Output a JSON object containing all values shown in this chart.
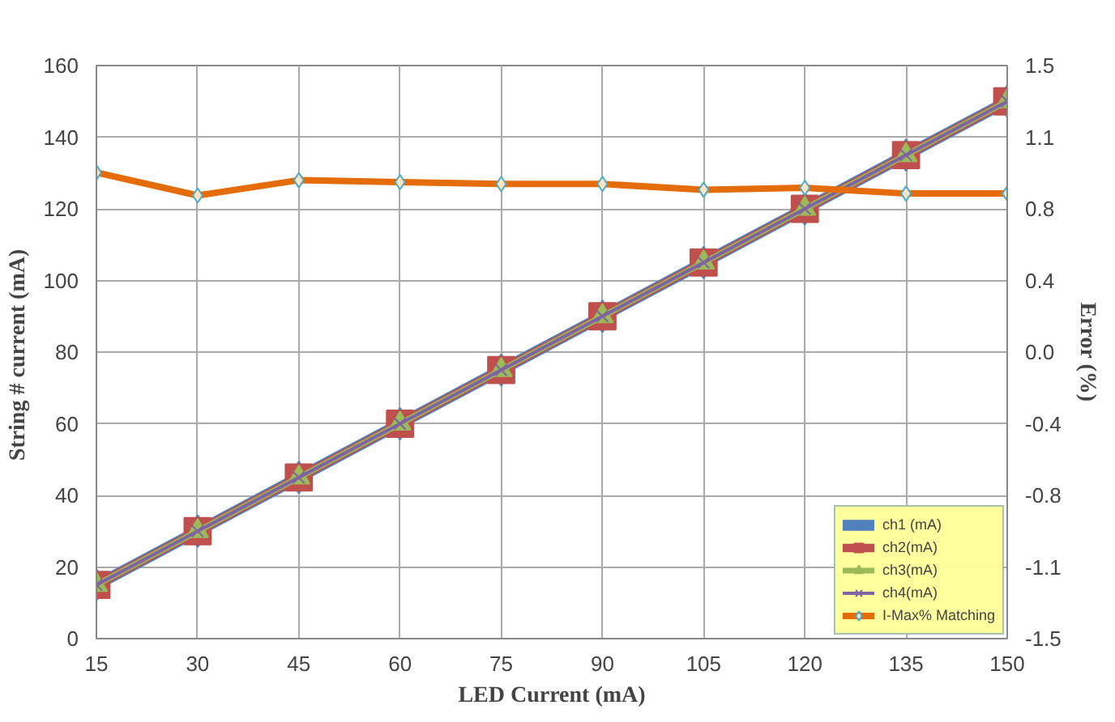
{
  "chart_data": {
    "type": "line",
    "xlabel": "LED Current (mA)",
    "ylabel": "String # current  (mA)",
    "y2label": "Error (%)",
    "x": [
      15,
      30,
      45,
      60,
      75,
      90,
      105,
      120,
      135,
      150
    ],
    "xlim": [
      15,
      150
    ],
    "xticks": [
      15,
      30,
      45,
      60,
      75,
      90,
      105,
      120,
      135,
      150
    ],
    "ylim": [
      0,
      160
    ],
    "yticks": [
      0,
      20,
      40,
      60,
      80,
      100,
      120,
      140,
      160
    ],
    "y2lim": [
      -1.5,
      1.5
    ],
    "y2ticks": [
      -1.5,
      {
        "value": -1.125,
        "label": "-1.1"
      },
      {
        "value": -0.75,
        "label": "-0.8"
      },
      {
        "value": -0.375,
        "label": "-0.4"
      },
      {
        "value": 0,
        "label": "0.0"
      },
      {
        "value": 0.375,
        "label": "0.4"
      },
      {
        "value": 0.75,
        "label": "0.8"
      },
      {
        "value": 1.125,
        "label": "1.1"
      },
      1.5
    ],
    "grid": true,
    "legend": "bottom right",
    "series": [
      {
        "name": "ch1 (mA)",
        "color": "#4f81bd",
        "marker": "diamond",
        "values": [
          15,
          30,
          45,
          60,
          75,
          90,
          105,
          120,
          135,
          150
        ]
      },
      {
        "name": "ch2(mA)",
        "color": "#c0504d",
        "marker": "square",
        "values": [
          15,
          30,
          45,
          60,
          75,
          90,
          105,
          120,
          135,
          150
        ]
      },
      {
        "name": "ch3(mA)",
        "color": "#9bbb59",
        "marker": "triangle",
        "values": [
          15,
          30,
          45,
          60,
          75,
          90,
          105,
          120,
          135,
          150
        ]
      },
      {
        "name": "ch4(mA)",
        "color": "#8064a2",
        "marker": "cross",
        "values": [
          15,
          30,
          45,
          60,
          75,
          90,
          105,
          120,
          135,
          150
        ]
      },
      {
        "name": "I-Max% Matching",
        "color": "#e46c0a",
        "marker": "diamond",
        "axis": "y2",
        "values": [
          0.94,
          0.82,
          0.9,
          0.89,
          0.88,
          0.88,
          0.85,
          0.86,
          0.83,
          0.83
        ]
      }
    ]
  }
}
